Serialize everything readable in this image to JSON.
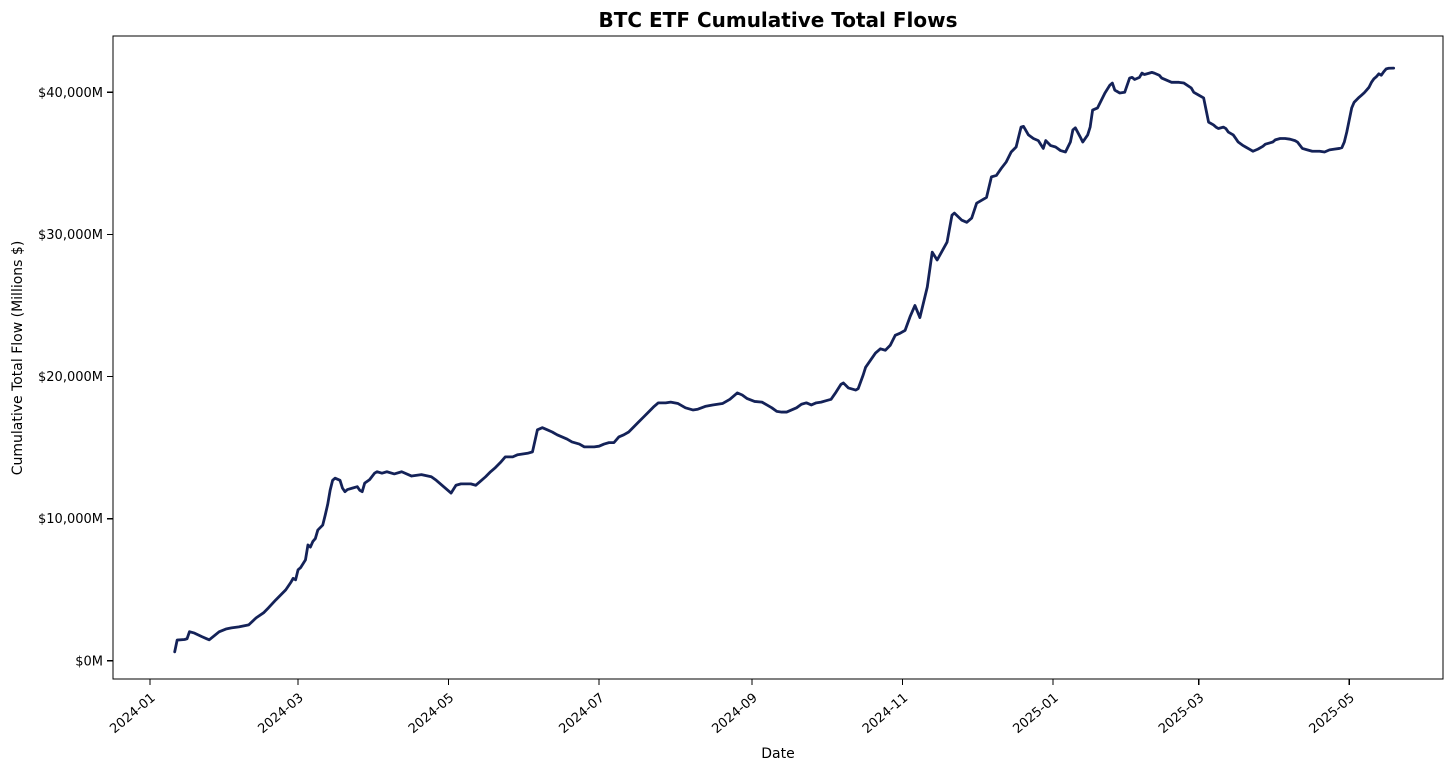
{
  "chart_data": {
    "type": "line",
    "title": "BTC ETF Cumulative Total Flows",
    "xlabel": "Date",
    "ylabel": "Cumulative Total Flow (Millions $)",
    "line_color": "#142258",
    "axis_color": "#000000",
    "background_color": "#ffffff",
    "grid": false,
    "legend": "none",
    "x_tick_rotation_deg": 40,
    "xlim": [
      "2023-12-17",
      "2025-06-08"
    ],
    "ylim": [
      -1280,
      43960
    ],
    "xticks": [
      {
        "date": "2024-01-01",
        "label": "2024-01"
      },
      {
        "date": "2024-03-01",
        "label": "2024-03"
      },
      {
        "date": "2024-05-01",
        "label": "2024-05"
      },
      {
        "date": "2024-07-01",
        "label": "2024-07"
      },
      {
        "date": "2024-09-01",
        "label": "2024-09"
      },
      {
        "date": "2024-11-01",
        "label": "2024-11"
      },
      {
        "date": "2025-01-01",
        "label": "2025-01"
      },
      {
        "date": "2025-03-01",
        "label": "2025-03"
      },
      {
        "date": "2025-05-01",
        "label": "2025-05"
      }
    ],
    "yticks": [
      {
        "value": 0,
        "label": "$0M"
      },
      {
        "value": 10000,
        "label": "$10,000M"
      },
      {
        "value": 20000,
        "label": "$20,000M"
      },
      {
        "value": 30000,
        "label": "$30,000M"
      },
      {
        "value": 40000,
        "label": "$40,000M"
      }
    ],
    "points": [
      [
        "2024-01-11",
        630
      ],
      [
        "2024-01-12",
        1460
      ],
      [
        "2024-01-15",
        1500
      ],
      [
        "2024-01-16",
        1550
      ],
      [
        "2024-01-17",
        2050
      ],
      [
        "2024-01-19",
        1950
      ],
      [
        "2024-01-22",
        1700
      ],
      [
        "2024-01-24",
        1550
      ],
      [
        "2024-01-25",
        1475
      ],
      [
        "2024-01-29",
        2040
      ],
      [
        "2024-02-01",
        2250
      ],
      [
        "2024-02-03",
        2320
      ],
      [
        "2024-02-06",
        2390
      ],
      [
        "2024-02-08",
        2460
      ],
      [
        "2024-02-10",
        2530
      ],
      [
        "2024-02-13",
        3020
      ],
      [
        "2024-02-16",
        3375
      ],
      [
        "2024-02-18",
        3725
      ],
      [
        "2024-02-21",
        4290
      ],
      [
        "2024-02-23",
        4640
      ],
      [
        "2024-02-25",
        4990
      ],
      [
        "2024-02-27",
        5500
      ],
      [
        "2024-02-28",
        5800
      ],
      [
        "2024-02-29",
        5700
      ],
      [
        "2024-03-01",
        6400
      ],
      [
        "2024-03-02",
        6550
      ],
      [
        "2024-03-04",
        7100
      ],
      [
        "2024-03-05",
        8150
      ],
      [
        "2024-03-06",
        8000
      ],
      [
        "2024-03-07",
        8400
      ],
      [
        "2024-03-08",
        8600
      ],
      [
        "2024-03-09",
        9200
      ],
      [
        "2024-03-11",
        9550
      ],
      [
        "2024-03-12",
        10250
      ],
      [
        "2024-03-13",
        11000
      ],
      [
        "2024-03-14",
        12000
      ],
      [
        "2024-03-15",
        12700
      ],
      [
        "2024-03-16",
        12850
      ],
      [
        "2024-03-18",
        12700
      ],
      [
        "2024-03-19",
        12150
      ],
      [
        "2024-03-20",
        11900
      ],
      [
        "2024-03-21",
        12050
      ],
      [
        "2024-03-23",
        12150
      ],
      [
        "2024-03-25",
        12250
      ],
      [
        "2024-03-26",
        12000
      ],
      [
        "2024-03-27",
        11900
      ],
      [
        "2024-03-28",
        12500
      ],
      [
        "2024-03-30",
        12750
      ],
      [
        "2024-04-01",
        13200
      ],
      [
        "2024-04-02",
        13300
      ],
      [
        "2024-04-04",
        13200
      ],
      [
        "2024-04-06",
        13300
      ],
      [
        "2024-04-09",
        13150
      ],
      [
        "2024-04-12",
        13300
      ],
      [
        "2024-04-16",
        13000
      ],
      [
        "2024-04-20",
        13100
      ],
      [
        "2024-04-24",
        12950
      ],
      [
        "2024-04-26",
        12700
      ],
      [
        "2024-04-30",
        12100
      ],
      [
        "2024-05-02",
        11800
      ],
      [
        "2024-05-04",
        12350
      ],
      [
        "2024-05-06",
        12450
      ],
      [
        "2024-05-10",
        12450
      ],
      [
        "2024-05-12",
        12350
      ],
      [
        "2024-05-14",
        12650
      ],
      [
        "2024-05-16",
        12950
      ],
      [
        "2024-05-18",
        13300
      ],
      [
        "2024-05-20",
        13600
      ],
      [
        "2024-05-22",
        13950
      ],
      [
        "2024-05-24",
        14350
      ],
      [
        "2024-05-27",
        14350
      ],
      [
        "2024-05-29",
        14500
      ],
      [
        "2024-05-31",
        14550
      ],
      [
        "2024-06-02",
        14600
      ],
      [
        "2024-06-04",
        14700
      ],
      [
        "2024-06-06",
        16250
      ],
      [
        "2024-06-08",
        16400
      ],
      [
        "2024-06-10",
        16250
      ],
      [
        "2024-06-12",
        16100
      ],
      [
        "2024-06-14",
        15900
      ],
      [
        "2024-06-16",
        15750
      ],
      [
        "2024-06-18",
        15600
      ],
      [
        "2024-06-20",
        15400
      ],
      [
        "2024-06-23",
        15250
      ],
      [
        "2024-06-25",
        15050
      ],
      [
        "2024-06-29",
        15050
      ],
      [
        "2024-07-01",
        15100
      ],
      [
        "2024-07-03",
        15250
      ],
      [
        "2024-07-05",
        15350
      ],
      [
        "2024-07-07",
        15350
      ],
      [
        "2024-07-09",
        15750
      ],
      [
        "2024-07-11",
        15900
      ],
      [
        "2024-07-13",
        16100
      ],
      [
        "2024-07-15",
        16450
      ],
      [
        "2024-07-17",
        16800
      ],
      [
        "2024-07-19",
        17150
      ],
      [
        "2024-07-21",
        17500
      ],
      [
        "2024-07-23",
        17850
      ],
      [
        "2024-07-25",
        18150
      ],
      [
        "2024-07-28",
        18150
      ],
      [
        "2024-07-30",
        18200
      ],
      [
        "2024-08-02",
        18100
      ],
      [
        "2024-08-05",
        17800
      ],
      [
        "2024-08-08",
        17650
      ],
      [
        "2024-08-10",
        17700
      ],
      [
        "2024-08-13",
        17900
      ],
      [
        "2024-08-16",
        18000
      ],
      [
        "2024-08-20",
        18100
      ],
      [
        "2024-08-23",
        18400
      ],
      [
        "2024-08-26",
        18850
      ],
      [
        "2024-08-28",
        18700
      ],
      [
        "2024-08-30",
        18450
      ],
      [
        "2024-09-02",
        18250
      ],
      [
        "2024-09-05",
        18200
      ],
      [
        "2024-09-07",
        18000
      ],
      [
        "2024-09-09",
        17800
      ],
      [
        "2024-09-11",
        17550
      ],
      [
        "2024-09-13",
        17500
      ],
      [
        "2024-09-15",
        17500
      ],
      [
        "2024-09-17",
        17650
      ],
      [
        "2024-09-19",
        17800
      ],
      [
        "2024-09-21",
        18050
      ],
      [
        "2024-09-23",
        18150
      ],
      [
        "2024-09-25",
        18000
      ],
      [
        "2024-09-27",
        18150
      ],
      [
        "2024-09-29",
        18200
      ],
      [
        "2024-10-01",
        18300
      ],
      [
        "2024-10-03",
        18400
      ],
      [
        "2024-10-05",
        18900
      ],
      [
        "2024-10-07",
        19450
      ],
      [
        "2024-10-08",
        19550
      ],
      [
        "2024-10-10",
        19200
      ],
      [
        "2024-10-13",
        19050
      ],
      [
        "2024-10-14",
        19150
      ],
      [
        "2024-10-16",
        20100
      ],
      [
        "2024-10-17",
        20650
      ],
      [
        "2024-10-19",
        21150
      ],
      [
        "2024-10-21",
        21650
      ],
      [
        "2024-10-23",
        21950
      ],
      [
        "2024-10-25",
        21850
      ],
      [
        "2024-10-27",
        22200
      ],
      [
        "2024-10-29",
        22900
      ],
      [
        "2024-10-31",
        23050
      ],
      [
        "2024-11-02",
        23250
      ],
      [
        "2024-11-04",
        24200
      ],
      [
        "2024-11-06",
        25000
      ],
      [
        "2024-11-08",
        24150
      ],
      [
        "2024-11-11",
        26300
      ],
      [
        "2024-11-13",
        28750
      ],
      [
        "2024-11-15",
        28200
      ],
      [
        "2024-11-19",
        29450
      ],
      [
        "2024-11-21",
        31350
      ],
      [
        "2024-11-22",
        31500
      ],
      [
        "2024-11-25",
        31000
      ],
      [
        "2024-11-27",
        30850
      ],
      [
        "2024-11-29",
        31150
      ],
      [
        "2024-12-01",
        32200
      ],
      [
        "2024-12-03",
        32400
      ],
      [
        "2024-12-05",
        32600
      ],
      [
        "2024-12-07",
        34050
      ],
      [
        "2024-12-09",
        34150
      ],
      [
        "2024-12-11",
        34650
      ],
      [
        "2024-12-13",
        35100
      ],
      [
        "2024-12-15",
        35800
      ],
      [
        "2024-12-17",
        36150
      ],
      [
        "2024-12-19",
        37550
      ],
      [
        "2024-12-20",
        37600
      ],
      [
        "2024-12-22",
        37000
      ],
      [
        "2024-12-24",
        36750
      ],
      [
        "2024-12-26",
        36600
      ],
      [
        "2024-12-28",
        36050
      ],
      [
        "2024-12-29",
        36600
      ],
      [
        "2024-12-31",
        36250
      ],
      [
        "2025-01-02",
        36150
      ],
      [
        "2025-01-04",
        35900
      ],
      [
        "2025-01-06",
        35800
      ],
      [
        "2025-01-08",
        36500
      ],
      [
        "2025-01-09",
        37350
      ],
      [
        "2025-01-10",
        37500
      ],
      [
        "2025-01-12",
        36850
      ],
      [
        "2025-01-13",
        36500
      ],
      [
        "2025-01-15",
        37000
      ],
      [
        "2025-01-16",
        37550
      ],
      [
        "2025-01-17",
        38750
      ],
      [
        "2025-01-19",
        38900
      ],
      [
        "2025-01-22",
        39950
      ],
      [
        "2025-01-24",
        40500
      ],
      [
        "2025-01-25",
        40650
      ],
      [
        "2025-01-26",
        40150
      ],
      [
        "2025-01-28",
        39950
      ],
      [
        "2025-01-30",
        40000
      ],
      [
        "2025-02-01",
        41000
      ],
      [
        "2025-02-02",
        41050
      ],
      [
        "2025-02-03",
        40900
      ],
      [
        "2025-02-05",
        41050
      ],
      [
        "2025-02-06",
        41350
      ],
      [
        "2025-02-07",
        41250
      ],
      [
        "2025-02-09",
        41350
      ],
      [
        "2025-02-10",
        41400
      ],
      [
        "2025-02-11",
        41350
      ],
      [
        "2025-02-13",
        41200
      ],
      [
        "2025-02-14",
        41000
      ],
      [
        "2025-02-16",
        40850
      ],
      [
        "2025-02-18",
        40700
      ],
      [
        "2025-02-21",
        40700
      ],
      [
        "2025-02-23",
        40650
      ],
      [
        "2025-02-26",
        40300
      ],
      [
        "2025-02-27",
        40000
      ],
      [
        "2025-03-01",
        39800
      ],
      [
        "2025-03-03",
        39600
      ],
      [
        "2025-03-04",
        38750
      ],
      [
        "2025-03-05",
        37900
      ],
      [
        "2025-03-07",
        37700
      ],
      [
        "2025-03-08",
        37550
      ],
      [
        "2025-03-09",
        37450
      ],
      [
        "2025-03-11",
        37550
      ],
      [
        "2025-03-12",
        37450
      ],
      [
        "2025-03-13",
        37200
      ],
      [
        "2025-03-15",
        37000
      ],
      [
        "2025-03-16",
        36750
      ],
      [
        "2025-03-17",
        36500
      ],
      [
        "2025-03-19",
        36250
      ],
      [
        "2025-03-20",
        36150
      ],
      [
        "2025-03-22",
        35950
      ],
      [
        "2025-03-23",
        35850
      ],
      [
        "2025-03-25",
        36000
      ],
      [
        "2025-03-27",
        36200
      ],
      [
        "2025-03-28",
        36350
      ],
      [
        "2025-03-31",
        36500
      ],
      [
        "2025-04-01",
        36650
      ],
      [
        "2025-04-03",
        36750
      ],
      [
        "2025-04-05",
        36750
      ],
      [
        "2025-04-07",
        36700
      ],
      [
        "2025-04-09",
        36600
      ],
      [
        "2025-04-10",
        36500
      ],
      [
        "2025-04-12",
        36050
      ],
      [
        "2025-04-14",
        35950
      ],
      [
        "2025-04-16",
        35850
      ],
      [
        "2025-04-19",
        35850
      ],
      [
        "2025-04-21",
        35800
      ],
      [
        "2025-04-23",
        35950
      ],
      [
        "2025-04-25",
        36000
      ],
      [
        "2025-04-27",
        36050
      ],
      [
        "2025-04-28",
        36100
      ],
      [
        "2025-04-29",
        36500
      ],
      [
        "2025-04-30",
        37200
      ],
      [
        "2025-05-01",
        38050
      ],
      [
        "2025-05-02",
        38900
      ],
      [
        "2025-05-03",
        39300
      ],
      [
        "2025-05-05",
        39650
      ],
      [
        "2025-05-06",
        39800
      ],
      [
        "2025-05-07",
        39950
      ],
      [
        "2025-05-08",
        40150
      ],
      [
        "2025-05-09",
        40350
      ],
      [
        "2025-05-10",
        40700
      ],
      [
        "2025-05-11",
        40950
      ],
      [
        "2025-05-12",
        41100
      ],
      [
        "2025-05-13",
        41300
      ],
      [
        "2025-05-14",
        41200
      ],
      [
        "2025-05-15",
        41450
      ],
      [
        "2025-05-16",
        41650
      ],
      [
        "2025-05-17",
        41690
      ],
      [
        "2025-05-19",
        41700
      ]
    ]
  }
}
